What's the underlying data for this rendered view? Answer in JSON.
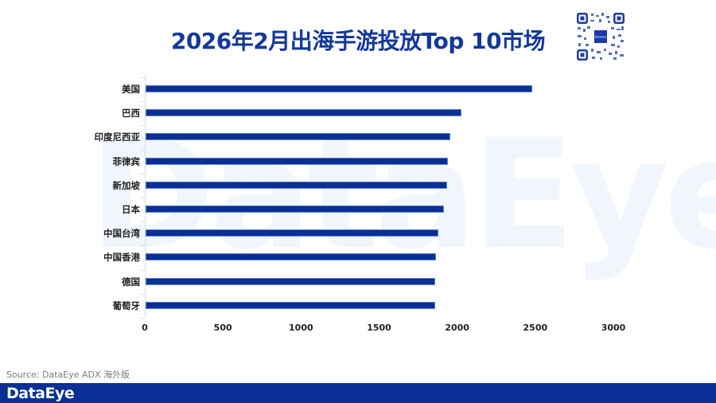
{
  "title": "2026年2月出海手游投放Top 10市场",
  "watermark": "DataEye",
  "source": "Source: DataEye ADX 海外版",
  "footer": {
    "logo": "DataEye",
    "bg_color": "#0a2f96"
  },
  "qr": {
    "label": "qr-code",
    "center_badge": "DataEye"
  },
  "colors": {
    "bar": "#0a2f96",
    "title": "#13389a"
  },
  "chart_data": {
    "type": "bar",
    "orientation": "horizontal",
    "title": "2026年2月出海手游投放Top 10市场",
    "xlabel": "",
    "ylabel": "",
    "categories": [
      "美国",
      "巴西",
      "印度尼西亚",
      "菲律宾",
      "新加坡",
      "日本",
      "中国台湾",
      "中国香港",
      "德国",
      "葡萄牙"
    ],
    "values": [
      2475,
      2022,
      1951,
      1936,
      1930,
      1910,
      1875,
      1860,
      1855,
      1853
    ],
    "xlim": [
      0,
      3000
    ],
    "xticks": [
      "0",
      "500",
      "1000",
      "1500",
      "2000",
      "2500",
      "3000"
    ],
    "grid": false,
    "legend": null
  }
}
